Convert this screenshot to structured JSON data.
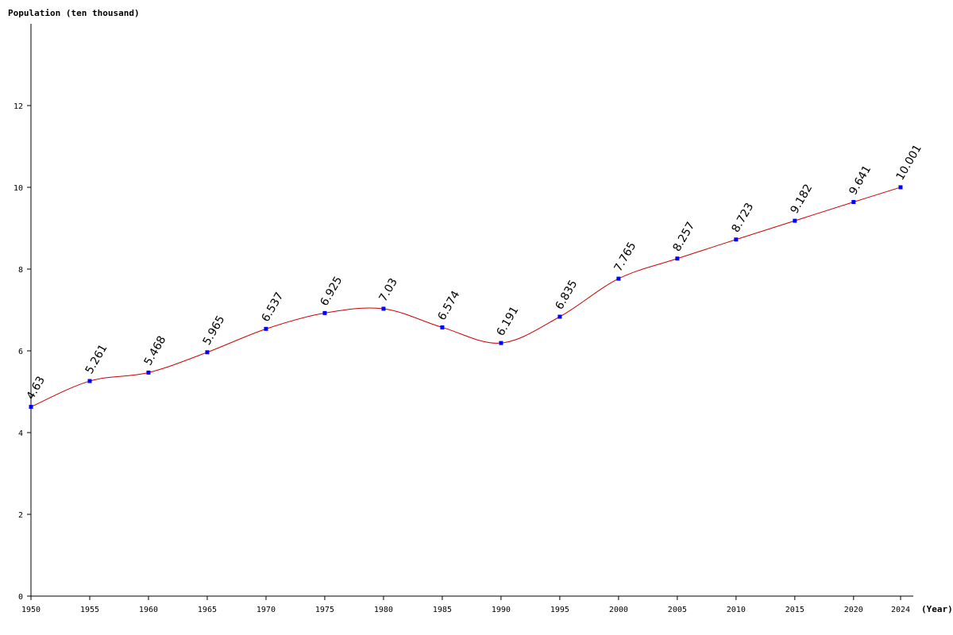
{
  "chart_data": {
    "type": "line",
    "ylabel": "Population (ten thousand)",
    "xlabel": "(Year)",
    "x": [
      1950,
      1955,
      1960,
      1965,
      1970,
      1975,
      1980,
      1985,
      1990,
      1995,
      2000,
      2005,
      2010,
      2015,
      2020,
      2024
    ],
    "x_tick_labels": [
      "1950",
      "1955",
      "1960",
      "1965",
      "1970",
      "1975",
      "1980",
      "1985",
      "1990",
      "1995",
      "2000",
      "2005",
      "2010",
      "2015",
      "2020",
      "2024"
    ],
    "series": [
      {
        "values": [
          4.63,
          5.261,
          5.468,
          5.965,
          6.537,
          6.925,
          7.03,
          6.574,
          6.191,
          6.835,
          7.765,
          8.257,
          8.723,
          9.182,
          9.641,
          10.001
        ],
        "data_labels": [
          "4.63",
          "5.261",
          "5.468",
          "5.965",
          "6.537",
          "6.925",
          "7.03",
          "6.574",
          "6.191",
          "6.835",
          "7.765",
          "8.257",
          "8.723",
          "9.182",
          "9.641",
          "10.001"
        ]
      }
    ],
    "y_ticks": [
      0,
      2,
      4,
      6,
      8,
      10,
      12
    ],
    "y_tick_labels": [
      "0",
      "2",
      "4",
      "6",
      "8",
      "10",
      "12"
    ],
    "ylim": [
      0,
      14
    ],
    "xlim": [
      1950,
      2024
    ],
    "grid": false,
    "colors": {
      "line": "#cc0000",
      "marker": "#0000ff",
      "axis": "#000000"
    }
  }
}
